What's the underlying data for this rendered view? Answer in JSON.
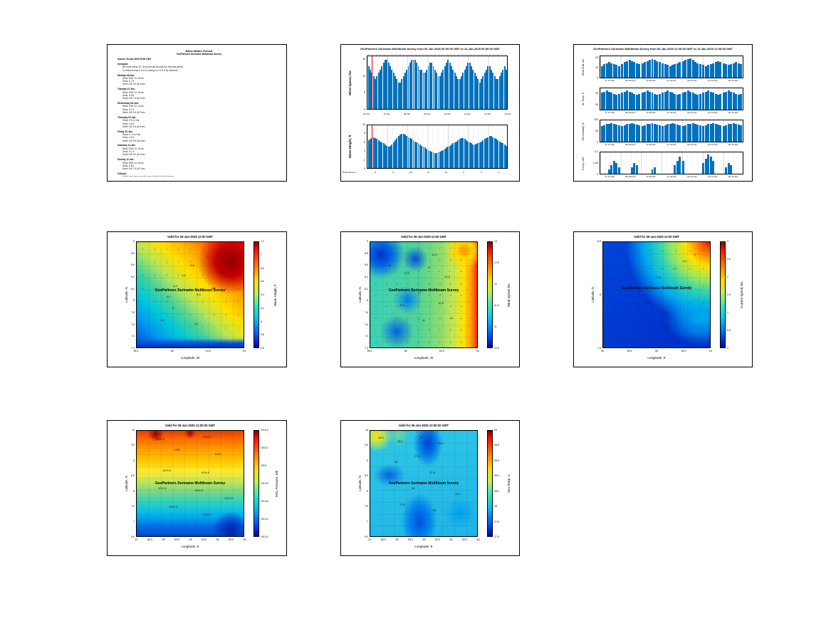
{
  "branding": {
    "survey": "GeoPartners Suriname Multibeam Survey"
  },
  "document": {
    "header": [
      "Marine Weather Forecast",
      "GeoPartners Suriname Multibeam Survey"
    ],
    "sections": [
      {
        "h": "Issued: 06-Jan-2025 06:00 GMT",
        "lines": []
      },
      {
        "h": "Synopsis:",
        "lines": [
          "NE trade winds 10-15 kts persist through the forecast period.",
          "Combined seas 5 to 8 ft, easing to 4 to 6 ft by midweek."
        ]
      },
      {
        "h": "Monday 06-Jan:",
        "lines": [
          "Wind: ENE 10-15 kts",
          "Seas: 5-7 ft",
          "Swell: NE 6 ft @ 8 sec"
        ]
      },
      {
        "h": "Tuesday 07-Jan:",
        "lines": [
          "Wind: ENE 12-16 kts",
          "Seas: 6-8 ft",
          "Swell: NE 7 ft @ 9 sec"
        ]
      },
      {
        "h": "Wednesday 08-Jan:",
        "lines": [
          "Wind: ENE 10-14 kts",
          "Seas: 5-7 ft",
          "Swell: NE 6 ft @ 9 sec"
        ]
      },
      {
        "h": "Thursday 09-Jan:",
        "lines": [
          "Wind: E 8-12 kts",
          "Seas: 4-6 ft",
          "Swell: NE 5 ft @ 8 sec"
        ]
      },
      {
        "h": "Friday 10-Jan:",
        "lines": [
          "Wind: E 10-14 kts",
          "Seas: 4-6 ft",
          "Swell: NE 5 ft @ 8 sec"
        ]
      },
      {
        "h": "Saturday 11-Jan:",
        "lines": [
          "Wind: ENE 10-15 kts",
          "Seas: 5-7 ft",
          "Swell: NE 6 ft @ 8 sec"
        ]
      },
      {
        "h": "Sunday 12-Jan:",
        "lines": [
          "Wind: ENE 12-16 kts",
          "Seas: 6-8 ft",
          "Swell: NE 7 ft @ 9 sec"
        ]
      },
      {
        "h": "Outlook:",
        "lines": [
          "Winds and seas remain near normal for the season."
        ]
      }
    ]
  },
  "chart_data": [
    {
      "type": "bar",
      "title": "GeoPartners Suriname Multibeam Survey from 06-Jan-2025 00:00:00 GMT to 13-Jan-2025 00:00:00 GMT",
      "bar_color": "#0072bd",
      "now_color": "#ff0000",
      "now_line_frac": 0.03,
      "x_day_labels": [
        "06-Jan",
        "07-Jan",
        "08-Jan",
        "09-Jan",
        "10-Jan",
        "11-Jan",
        "12-Jan",
        "13-Jan"
      ],
      "footer_label": "Peak Period, s",
      "footer_values": [
        "9",
        "9",
        "10",
        "11",
        "10",
        "9",
        "9",
        "8"
      ],
      "subplots": [
        {
          "ylabel": "Wind Speed, kts",
          "yticks": [
            0,
            5,
            10,
            15
          ],
          "ylim": [
            0,
            16
          ],
          "values": [
            13,
            12,
            11,
            10,
            9,
            10,
            11,
            12,
            13,
            14,
            15,
            15,
            14,
            13,
            12,
            11,
            10,
            9,
            8,
            8,
            9,
            10,
            11,
            12,
            13,
            14,
            15,
            15,
            15,
            14,
            13,
            12,
            12,
            11,
            11,
            12,
            13,
            14,
            14,
            13,
            12,
            11,
            10,
            10,
            11,
            12,
            13,
            14,
            15,
            14,
            13,
            12,
            11,
            10,
            9,
            9,
            10,
            11,
            12,
            13,
            14,
            14,
            13,
            12,
            11,
            10,
            9,
            8,
            9,
            10,
            11,
            12,
            13,
            13,
            12,
            11,
            10,
            9,
            9,
            10,
            11,
            12,
            13,
            12
          ]
        },
        {
          "ylabel": "Wave Height, ft",
          "yticks": [
            0,
            2,
            4,
            6,
            8,
            10
          ],
          "ylim": [
            0,
            10
          ],
          "values": [
            6.5,
            6.8,
            7,
            7.2,
            7,
            6.8,
            6.5,
            6.2,
            6,
            5.8,
            5.5,
            5.2,
            5,
            5.2,
            5.5,
            6,
            6.5,
            7,
            7.5,
            7.8,
            8,
            8,
            7.8,
            7.5,
            7.2,
            7,
            6.8,
            6.5,
            6.2,
            6,
            5.8,
            5.5,
            5.2,
            5,
            4.8,
            4.5,
            4.2,
            4,
            3.8,
            3.6,
            3.5,
            3.5,
            3.6,
            3.8,
            4,
            4.2,
            4.5,
            4.8,
            5,
            5.2,
            5.5,
            5.8,
            6,
            6.2,
            6.5,
            6.8,
            7,
            7,
            6.8,
            6.5,
            6.2,
            6,
            5.8,
            5.5,
            5.5,
            5.6,
            5.8,
            6,
            6.2,
            6.5,
            6.8,
            7,
            7.2,
            7.5,
            7.5,
            7.2,
            7,
            6.8,
            6.5,
            6.2,
            6,
            5.8,
            5.5,
            5.2
          ]
        }
      ]
    },
    {
      "type": "bar",
      "title": "GeoPartners Suriname Multibeam Survey from 06-Jan-2025 12:00:00 GMT to 13-Jan-2025 12:00:00 GMT",
      "bar_color": "#0072bd",
      "x_day_labels": [
        "Tu 07-Jan",
        "We 08-Jan",
        "Th 09-Jan",
        "Fr 10-Jan",
        "Sa 11-Jan",
        "Su 12-Jan",
        "Mo 13-Jan"
      ],
      "subplots": [
        {
          "ylabel": "Wind Gust, kts",
          "yticks": [
            0,
            10,
            20
          ],
          "ylim": [
            0,
            22
          ],
          "values": [
            12,
            14,
            15,
            16,
            15,
            14,
            13,
            12,
            14,
            16,
            17,
            18,
            17,
            16,
            15,
            14,
            15,
            16,
            17,
            18,
            19,
            18,
            17,
            16,
            15,
            14,
            13,
            12,
            13,
            14,
            15,
            16,
            17,
            18,
            19,
            20,
            18,
            16,
            15,
            14,
            13,
            12,
            13,
            14,
            15,
            16,
            17,
            16,
            15,
            14,
            13,
            14,
            15,
            16,
            15,
            14
          ]
        },
        {
          "ylabel": "Air Temp, C",
          "yticks": [
            26,
            28
          ],
          "ylim": [
            25,
            29
          ],
          "values": [
            28.2,
            28.4,
            28.6,
            28.4,
            28.2,
            28,
            27.8,
            28,
            28.2,
            28.4,
            28.6,
            28.4,
            28.2,
            28,
            27.8,
            28,
            28.2,
            28.4,
            28.6,
            28.4,
            28.2,
            28,
            27.8,
            28,
            28.2,
            28.4,
            28.6,
            28.4,
            28.2,
            28,
            27.8,
            28,
            28.2,
            28.4,
            28.6,
            28.4,
            28.2,
            28,
            27.8,
            28,
            28.2,
            28.4,
            28.6,
            28.4,
            28.2,
            28,
            27.8,
            28,
            28.2,
            28.4,
            28.6,
            28.4,
            28.2,
            28,
            27.8,
            28
          ]
        },
        {
          "ylabel": "Rel Humidity, %",
          "yticks": [
            0,
            50,
            100
          ],
          "ylim": [
            0,
            100
          ],
          "values": [
            75,
            78,
            82,
            85,
            88,
            85,
            80,
            76,
            75,
            78,
            82,
            85,
            88,
            85,
            80,
            76,
            75,
            78,
            82,
            85,
            88,
            85,
            80,
            76,
            75,
            78,
            82,
            85,
            88,
            85,
            80,
            76,
            75,
            78,
            82,
            85,
            88,
            85,
            80,
            76,
            75,
            78,
            82,
            85,
            88,
            85,
            80,
            76,
            75,
            78,
            82,
            85,
            88,
            85,
            80,
            76
          ]
        },
        {
          "ylabel": "Precip, in/hr",
          "yticks": [
            0,
            0.05,
            0.1
          ],
          "ylim": [
            0,
            0.1
          ],
          "values": [
            0,
            0,
            0,
            0.02,
            0.04,
            0.06,
            0.05,
            0.03,
            0,
            0,
            0,
            0,
            0.03,
            0.05,
            0.04,
            0,
            0,
            0,
            0,
            0,
            0.02,
            0.03,
            0,
            0,
            0,
            0,
            0,
            0,
            0,
            0.04,
            0.06,
            0.08,
            0.06,
            0,
            0,
            0,
            0,
            0,
            0,
            0,
            0.05,
            0.07,
            0.09,
            0.08,
            0.06,
            0,
            0,
            0,
            0,
            0.03,
            0.05,
            0.04,
            0,
            0,
            0,
            0
          ]
        }
      ]
    },
    {
      "type": "heatmap",
      "title": "Valid for 06-Jan-2025 12:00 GMT",
      "xlabel": "Longitude, W",
      "ylabel": "Latitude, N",
      "xticks": [
        "55.5",
        "55",
        "54.5",
        "54"
      ],
      "yticks": [
        "9",
        "8.8",
        "8.6",
        "8.4",
        "8.2",
        "8",
        "7.8",
        "7.6",
        "7.4",
        "7.2"
      ],
      "colorbar": {
        "label": "Wave Height, ft",
        "ticks": [
          "7.2",
          "7",
          "6.8",
          "6.6",
          "6.4",
          "6.2",
          "6",
          "5.8",
          "5.6"
        ]
      },
      "overlay_text": "GeoPartners Suriname Multibeam Survey",
      "overlay_y": 44,
      "contour_labels": [
        {
          "t": "7",
          "x": 66,
          "y": 14
        },
        {
          "t": "6.8",
          "x": 52,
          "y": 22
        },
        {
          "t": "6.6",
          "x": 44,
          "y": 32
        },
        {
          "t": "6.4",
          "x": 36,
          "y": 42
        },
        {
          "t": "6.2",
          "x": 30,
          "y": 52
        },
        {
          "t": "6",
          "x": 34,
          "y": 63
        },
        {
          "t": "6.4",
          "x": 58,
          "y": 50
        },
        {
          "t": "6.6",
          "x": 72,
          "y": 44
        },
        {
          "t": "5.8",
          "x": 24,
          "y": 74
        },
        {
          "t": "6.2",
          "x": 56,
          "y": 78
        },
        {
          "t": "6.8",
          "x": 80,
          "y": 30
        }
      ],
      "arrows": {
        "rows": 8,
        "cols": 9,
        "angle": 95,
        "wobble": 18
      }
    },
    {
      "type": "heatmap",
      "title": "Valid for 06-Jan-2025 12:00 GMT",
      "xlabel": "Longitude, W",
      "ylabel": "Latitude, N",
      "xticks": [
        "55.5",
        "55",
        "54.5",
        "54"
      ],
      "yticks": [
        "9",
        "8.8",
        "8.6",
        "8.4",
        "8.2",
        "8",
        "7.8",
        "7.6",
        "7.4",
        "7.2"
      ],
      "colorbar": {
        "label": "Wind Speed, kts",
        "ticks": [
          "13",
          "12.5",
          "12",
          "11.5",
          "11",
          "10.5"
        ]
      },
      "overlay_text": "GeoPartners Suriname Multibeam Survey",
      "overlay_y": 44,
      "contour_labels": [
        {
          "t": "11",
          "x": 18,
          "y": 22
        },
        {
          "t": "11.5",
          "x": 34,
          "y": 30
        },
        {
          "t": "12",
          "x": 55,
          "y": 24
        },
        {
          "t": "12.5",
          "x": 72,
          "y": 33
        },
        {
          "t": "12",
          "x": 46,
          "y": 48
        },
        {
          "t": "11.5",
          "x": 30,
          "y": 60
        },
        {
          "t": "12.5",
          "x": 66,
          "y": 58
        },
        {
          "t": "11",
          "x": 50,
          "y": 74
        },
        {
          "t": "12",
          "x": 76,
          "y": 72
        },
        {
          "t": "11.5",
          "x": 60,
          "y": 12
        }
      ],
      "arrows": {
        "rows": 9,
        "cols": 10,
        "angle": 160,
        "wobble": 30
      }
    },
    {
      "type": "heatmap",
      "title": "Valid for 06-Jan-2025 12:00 GMT",
      "xlabel": "Longitude, E",
      "ylabel": "Latitude, N",
      "xticks": [
        "56",
        "55.5",
        "55",
        "54.5",
        "54"
      ],
      "yticks": [
        "8.5",
        "8",
        "7.5"
      ],
      "colorbar": {
        "label": "Current Speed, kts",
        "ticks": [
          "3",
          "2.5",
          "2",
          "1.5",
          "1",
          "0.5",
          "0"
        ]
      },
      "overlay_text": "GeoPartners Suriname Multibeam Survey",
      "overlay_y": 42,
      "contour_labels": [
        {
          "t": "0.5",
          "x": 52,
          "y": 34
        },
        {
          "t": "1",
          "x": 66,
          "y": 26
        },
        {
          "t": "1.5",
          "x": 76,
          "y": 18
        },
        {
          "t": "2",
          "x": 86,
          "y": 12
        },
        {
          "t": "0.5",
          "x": 42,
          "y": 58
        },
        {
          "t": "1",
          "x": 72,
          "y": 62
        },
        {
          "t": "0.5",
          "x": 60,
          "y": 82
        }
      ],
      "arrows": {
        "rows": 6,
        "cols": 8,
        "angle": 185,
        "wobble": 15
      }
    },
    {
      "type": "heatmap",
      "title": "Valid for 06-Jan-2025 12:00:00 GMT",
      "xlabel": "Longitude, E",
      "ylabel": "Latitude, N",
      "xticks": [
        "-57",
        "-56.5",
        "-56",
        "-55.5",
        "-55",
        "-54.5",
        "-54",
        "-53.5",
        "-53"
      ],
      "yticks": [
        "10",
        "9.5",
        "9",
        "8.5",
        "8",
        "7.5",
        "7",
        "6.5"
      ],
      "colorbar": {
        "label": "MSL Pressure, mb",
        "ticks": [
          "1015.4",
          "1015.2",
          "1015",
          "1014.8",
          "1014.6",
          "1014.4",
          "1014.2"
        ]
      },
      "overlay_text": "GeoPartners Suriname Multibeam Survey",
      "overlay_y": 48,
      "contour_labels": [
        {
          "t": "1015.2",
          "x": 22,
          "y": 8
        },
        {
          "t": "1015.2",
          "x": 66,
          "y": 6
        },
        {
          "t": "1015",
          "x": 38,
          "y": 18
        },
        {
          "t": "1015",
          "x": 76,
          "y": 22
        },
        {
          "t": "1014.8",
          "x": 28,
          "y": 38
        },
        {
          "t": "1014.8",
          "x": 64,
          "y": 40
        },
        {
          "t": "1014.6",
          "x": 24,
          "y": 55
        },
        {
          "t": "1014.6",
          "x": 58,
          "y": 57
        },
        {
          "t": "1014.4",
          "x": 34,
          "y": 72
        },
        {
          "t": "1014.4",
          "x": 66,
          "y": 80
        },
        {
          "t": "1014.6",
          "x": 86,
          "y": 64
        }
      ],
      "arrows": null
    },
    {
      "type": "heatmap",
      "title": "Valid for 06-Jan-2025 12:00:00 GMT",
      "xlabel": "Longitude, E",
      "ylabel": "Latitude, N",
      "xticks": [
        "-57",
        "-56.5",
        "-56",
        "-55.5",
        "-55",
        "-54.5",
        "-54",
        "-53.5",
        "-53"
      ],
      "yticks": [
        "10",
        "9.5",
        "9",
        "8.5",
        "8",
        "7.5",
        "7",
        "6.5"
      ],
      "colorbar": {
        "label": "Sea Temp, C",
        "ticks": [
          "29",
          "28.8",
          "28.6",
          "28.4",
          "28.2",
          "28",
          "27.8",
          "27.6"
        ]
      },
      "overlay_text": "GeoPartners Suriname Multibeam Survey",
      "overlay_y": 48,
      "contour_labels": [
        {
          "t": "28.4",
          "x": 10,
          "y": 7
        },
        {
          "t": "28.2",
          "x": 28,
          "y": 10
        },
        {
          "t": "28",
          "x": 48,
          "y": 7
        },
        {
          "t": "28.2",
          "x": 66,
          "y": 12
        },
        {
          "t": "27.8",
          "x": 44,
          "y": 24
        },
        {
          "t": "28",
          "x": 24,
          "y": 30
        },
        {
          "t": "27.8",
          "x": 58,
          "y": 40
        },
        {
          "t": "28",
          "x": 40,
          "y": 55
        },
        {
          "t": "27.8",
          "x": 30,
          "y": 70
        },
        {
          "t": "28",
          "x": 60,
          "y": 76
        },
        {
          "t": "28.2",
          "x": 82,
          "y": 60
        }
      ],
      "arrows": null
    }
  ]
}
